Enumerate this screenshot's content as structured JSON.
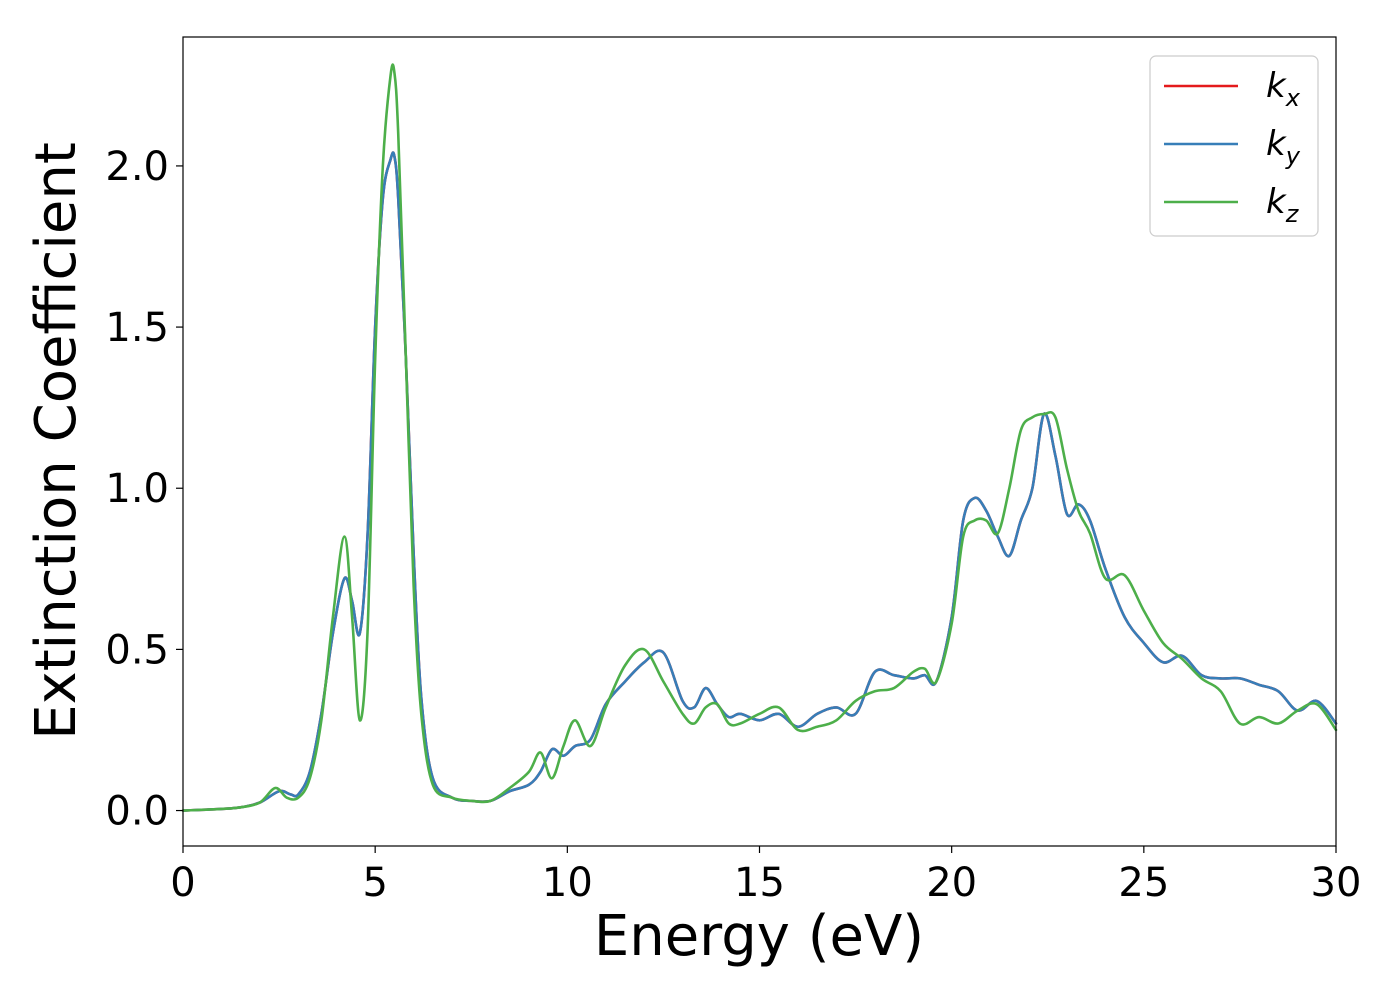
{
  "chart_data": {
    "type": "line",
    "xlabel": "Energy (eV)",
    "ylabel": "Extinction Coefficient",
    "xlim": [
      0,
      30
    ],
    "ylim": [
      -0.11,
      2.4
    ],
    "xticks": [
      0,
      5,
      10,
      15,
      20,
      25,
      30
    ],
    "xtick_labels": [
      "0",
      "5",
      "10",
      "15",
      "20",
      "25",
      "30"
    ],
    "yticks": [
      0.0,
      0.5,
      1.0,
      1.5,
      2.0
    ],
    "ytick_labels": [
      "0.0",
      "0.5",
      "1.0",
      "1.5",
      "2.0"
    ],
    "grid": false,
    "legend_position": "top-right",
    "series": [
      {
        "name": "k_x",
        "label_base": "k",
        "label_sub": "x",
        "color": "#e41a1c",
        "x": [
          0,
          1,
          1.5,
          2,
          2.5,
          2.8,
          3,
          3.3,
          3.6,
          3.9,
          4.2,
          4.4,
          4.6,
          4.8,
          5.0,
          5.2,
          5.4,
          5.5,
          5.6,
          5.8,
          6.0,
          6.2,
          6.5,
          7,
          7.5,
          8,
          8.5,
          9,
          9.3,
          9.6,
          9.9,
          10.2,
          10.6,
          11,
          11.5,
          12,
          12.5,
          13,
          13.3,
          13.6,
          13.9,
          14.2,
          14.5,
          15,
          15.5,
          16,
          16.5,
          17,
          17.5,
          18,
          18.5,
          19,
          19.3,
          19.6,
          20,
          20.3,
          20.6,
          20.9,
          21.2,
          21.5,
          21.8,
          22.1,
          22.4,
          22.7,
          23,
          23.3,
          23.6,
          24,
          24.5,
          25,
          25.5,
          26,
          26.5,
          27,
          27.5,
          28,
          28.5,
          29,
          29.5,
          30
        ],
        "y": [
          0,
          0.005,
          0.01,
          0.025,
          0.06,
          0.05,
          0.05,
          0.12,
          0.3,
          0.55,
          0.72,
          0.65,
          0.55,
          0.85,
          1.5,
          1.9,
          2.02,
          2.03,
          1.9,
          1.4,
          0.8,
          0.35,
          0.1,
          0.04,
          0.03,
          0.03,
          0.06,
          0.08,
          0.12,
          0.19,
          0.17,
          0.2,
          0.22,
          0.33,
          0.4,
          0.46,
          0.49,
          0.34,
          0.32,
          0.38,
          0.33,
          0.29,
          0.3,
          0.28,
          0.3,
          0.26,
          0.3,
          0.32,
          0.3,
          0.43,
          0.42,
          0.41,
          0.42,
          0.4,
          0.6,
          0.9,
          0.97,
          0.93,
          0.85,
          0.79,
          0.9,
          1.0,
          1.23,
          1.1,
          0.92,
          0.95,
          0.9,
          0.75,
          0.6,
          0.52,
          0.46,
          0.48,
          0.42,
          0.41,
          0.41,
          0.39,
          0.37,
          0.31,
          0.34,
          0.27
        ]
      },
      {
        "name": "k_y",
        "label_base": "k",
        "label_sub": "y",
        "color": "#377eb8",
        "x": [
          0,
          1,
          1.5,
          2,
          2.5,
          2.8,
          3,
          3.3,
          3.6,
          3.9,
          4.2,
          4.4,
          4.6,
          4.8,
          5.0,
          5.2,
          5.4,
          5.5,
          5.6,
          5.8,
          6.0,
          6.2,
          6.5,
          7,
          7.5,
          8,
          8.5,
          9,
          9.3,
          9.6,
          9.9,
          10.2,
          10.6,
          11,
          11.5,
          12,
          12.5,
          13,
          13.3,
          13.6,
          13.9,
          14.2,
          14.5,
          15,
          15.5,
          16,
          16.5,
          17,
          17.5,
          18,
          18.5,
          19,
          19.3,
          19.6,
          20,
          20.3,
          20.6,
          20.9,
          21.2,
          21.5,
          21.8,
          22.1,
          22.4,
          22.7,
          23,
          23.3,
          23.6,
          24,
          24.5,
          25,
          25.5,
          26,
          26.5,
          27,
          27.5,
          28,
          28.5,
          29,
          29.5,
          30
        ],
        "y": [
          0,
          0.005,
          0.01,
          0.025,
          0.06,
          0.05,
          0.05,
          0.12,
          0.3,
          0.55,
          0.72,
          0.65,
          0.55,
          0.85,
          1.5,
          1.9,
          2.02,
          2.03,
          1.9,
          1.4,
          0.8,
          0.35,
          0.1,
          0.04,
          0.03,
          0.03,
          0.06,
          0.08,
          0.12,
          0.19,
          0.17,
          0.2,
          0.22,
          0.33,
          0.4,
          0.46,
          0.49,
          0.34,
          0.32,
          0.38,
          0.33,
          0.29,
          0.3,
          0.28,
          0.3,
          0.26,
          0.3,
          0.32,
          0.3,
          0.43,
          0.42,
          0.41,
          0.42,
          0.4,
          0.6,
          0.9,
          0.97,
          0.93,
          0.85,
          0.79,
          0.9,
          1.0,
          1.23,
          1.1,
          0.92,
          0.95,
          0.9,
          0.75,
          0.6,
          0.52,
          0.46,
          0.48,
          0.42,
          0.41,
          0.41,
          0.39,
          0.37,
          0.31,
          0.34,
          0.27
        ]
      },
      {
        "name": "k_z",
        "label_base": "k",
        "label_sub": "z",
        "color": "#4daf4a",
        "x": [
          0,
          1,
          1.5,
          2,
          2.4,
          2.7,
          3,
          3.3,
          3.6,
          3.9,
          4.2,
          4.4,
          4.6,
          4.8,
          5.0,
          5.2,
          5.4,
          5.5,
          5.6,
          5.8,
          6.0,
          6.2,
          6.5,
          7,
          7.5,
          8,
          8.5,
          9,
          9.3,
          9.6,
          9.9,
          10.2,
          10.6,
          11,
          11.5,
          12,
          12.5,
          13,
          13.3,
          13.6,
          13.9,
          14.2,
          14.5,
          15,
          15.5,
          16,
          16.5,
          17,
          17.5,
          18,
          18.5,
          19,
          19.3,
          19.6,
          20,
          20.3,
          20.6,
          20.9,
          21.2,
          21.5,
          21.8,
          22.1,
          22.4,
          22.7,
          23,
          23.3,
          23.6,
          24,
          24.5,
          25,
          25.5,
          26,
          26.5,
          27,
          27.5,
          28,
          28.5,
          29,
          29.5,
          30
        ],
        "y": [
          0,
          0.005,
          0.01,
          0.025,
          0.07,
          0.04,
          0.04,
          0.1,
          0.28,
          0.6,
          0.85,
          0.6,
          0.28,
          0.55,
          1.4,
          2.0,
          2.28,
          2.29,
          2.1,
          1.4,
          0.7,
          0.3,
          0.08,
          0.04,
          0.03,
          0.03,
          0.07,
          0.12,
          0.18,
          0.1,
          0.2,
          0.28,
          0.2,
          0.32,
          0.45,
          0.5,
          0.4,
          0.3,
          0.27,
          0.32,
          0.33,
          0.27,
          0.27,
          0.3,
          0.32,
          0.25,
          0.26,
          0.28,
          0.34,
          0.37,
          0.38,
          0.43,
          0.44,
          0.4,
          0.58,
          0.85,
          0.9,
          0.9,
          0.86,
          1.0,
          1.18,
          1.22,
          1.23,
          1.22,
          1.06,
          0.93,
          0.86,
          0.72,
          0.73,
          0.62,
          0.52,
          0.47,
          0.41,
          0.37,
          0.27,
          0.29,
          0.27,
          0.31,
          0.33,
          0.25
        ]
      }
    ]
  }
}
